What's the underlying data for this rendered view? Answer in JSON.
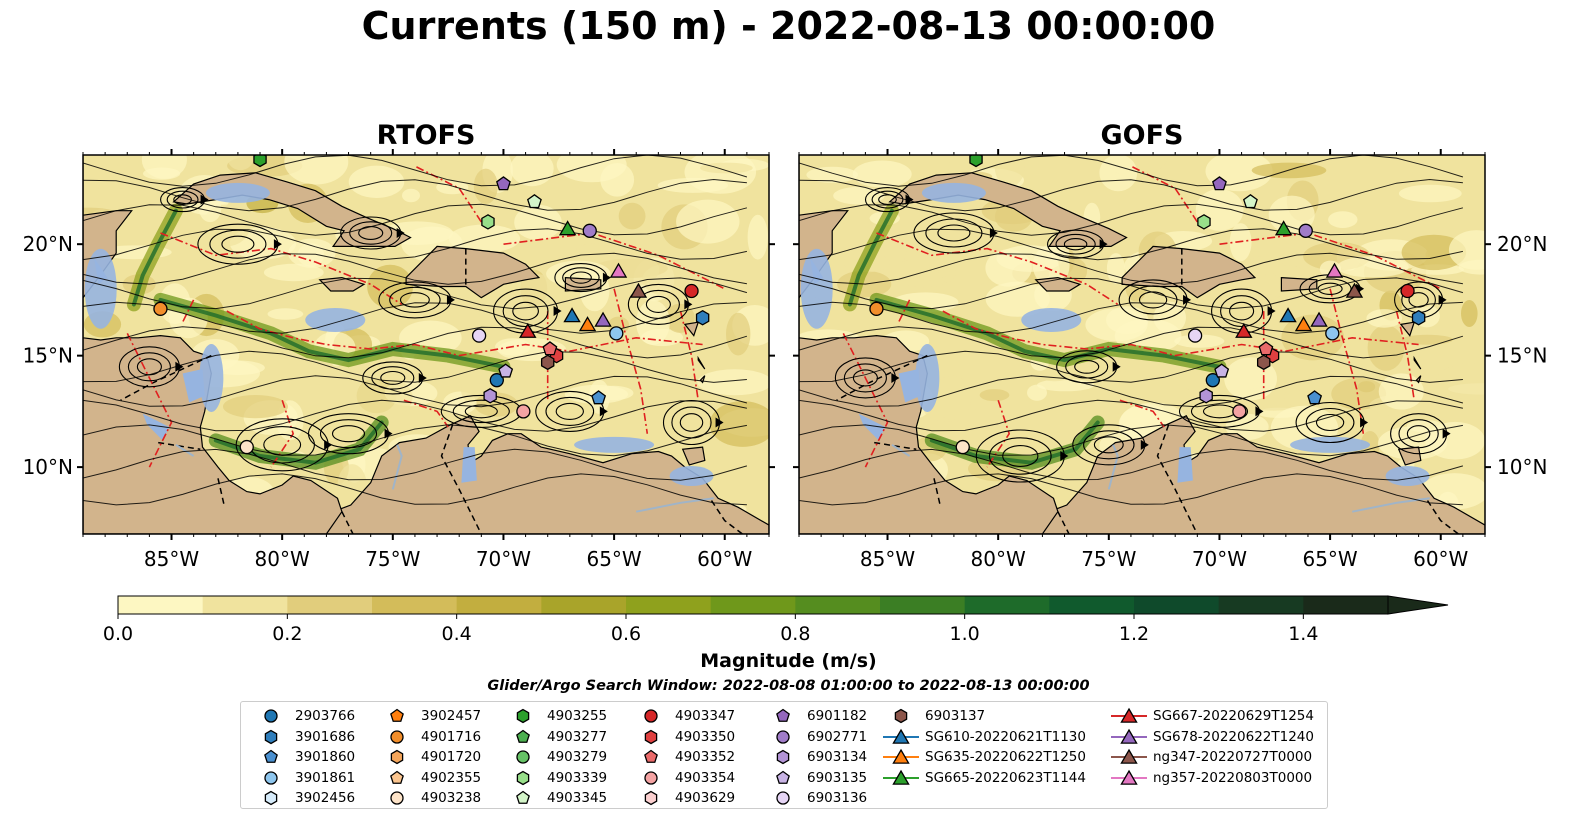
{
  "title": "Currents (150 m) - 2022-08-13 00:00:00",
  "panels": [
    {
      "title": "RTOFS"
    },
    {
      "title": "GOFS"
    }
  ],
  "axes": {
    "lon_ticks": [
      "85°W",
      "80°W",
      "75°W",
      "70°W",
      "65°W",
      "60°W"
    ],
    "lat_ticks": [
      "20°N",
      "15°N",
      "10°N"
    ]
  },
  "colorbar": {
    "label": "Magnitude (m/s)",
    "ticks": [
      "0.0",
      "0.2",
      "0.4",
      "0.6",
      "0.8",
      "1.0",
      "1.2",
      "1.4"
    ],
    "colors": [
      "#fdf7c2",
      "#f0e39e",
      "#e1cd7c",
      "#d3bc5a",
      "#c2ae3f",
      "#a9a42a",
      "#8fa11d",
      "#6f981b",
      "#558d1f",
      "#3b7e24",
      "#1e6b2a",
      "#105a2d",
      "#0f4a2b",
      "#173a22",
      "#1a2a1a"
    ]
  },
  "search_window": "Glider/Argo Search Window: 2022-08-08 01:00:00 to 2022-08-13 00:00:00",
  "legend": [
    {
      "label": "2903766",
      "marker": "circle",
      "color": "#1f77b4"
    },
    {
      "label": "3901686",
      "marker": "hexagon",
      "color": "#2f7ebc"
    },
    {
      "label": "3901860",
      "marker": "pentagon",
      "color": "#4a90d0"
    },
    {
      "label": "3901861",
      "marker": "circle",
      "color": "#8ec6ee"
    },
    {
      "label": "3902456",
      "marker": "hexagon",
      "color": "#d6ebfa"
    },
    {
      "label": "3902457",
      "marker": "pentagon",
      "color": "#ff7f0e"
    },
    {
      "label": "4901716",
      "marker": "circle",
      "color": "#f28e2b"
    },
    {
      "label": "4901720",
      "marker": "hexagon",
      "color": "#f5a65b"
    },
    {
      "label": "4902355",
      "marker": "pentagon",
      "color": "#fbc58f"
    },
    {
      "label": "4903238",
      "marker": "circle",
      "color": "#fde3c8"
    },
    {
      "label": "4903255",
      "marker": "hexagon",
      "color": "#2ca02c"
    },
    {
      "label": "4903277",
      "marker": "pentagon",
      "color": "#4caf50"
    },
    {
      "label": "4903279",
      "marker": "circle",
      "color": "#66c266"
    },
    {
      "label": "4903339",
      "marker": "hexagon",
      "color": "#98df8a"
    },
    {
      "label": "4903345",
      "marker": "pentagon",
      "color": "#d4f5c9"
    },
    {
      "label": "4903347",
      "marker": "circle",
      "color": "#d62728"
    },
    {
      "label": "4903350",
      "marker": "hexagon",
      "color": "#e04040"
    },
    {
      "label": "4903352",
      "marker": "pentagon",
      "color": "#ea6a6a"
    },
    {
      "label": "4903354",
      "marker": "circle",
      "color": "#f4a3a3"
    },
    {
      "label": "4903629",
      "marker": "hexagon",
      "color": "#fbd0d0"
    },
    {
      "label": "6901182",
      "marker": "pentagon",
      "color": "#9467bd"
    },
    {
      "label": "6902771",
      "marker": "circle",
      "color": "#a07cc8"
    },
    {
      "label": "6903134",
      "marker": "hexagon",
      "color": "#b394d6"
    },
    {
      "label": "6903135",
      "marker": "pentagon",
      "color": "#c8b3e4"
    },
    {
      "label": "6903136",
      "marker": "circle",
      "color": "#e6d5f5"
    },
    {
      "label": "6903137",
      "marker": "hexagon",
      "color": "#8c564b"
    },
    {
      "label": "SG610-20220621T1130",
      "marker": "triangle-line",
      "color": "#1f77b4"
    },
    {
      "label": "SG635-20220622T1250",
      "marker": "triangle-line",
      "color": "#ff7f0e"
    },
    {
      "label": "SG665-20220623T1144",
      "marker": "triangle-line",
      "color": "#2ca02c"
    },
    {
      "label": "SG667-20220629T1254",
      "marker": "triangle-line",
      "color": "#d62728"
    },
    {
      "label": "SG678-20220622T1240",
      "marker": "triangle-line",
      "color": "#9467bd"
    },
    {
      "label": "ng347-20220727T0000",
      "marker": "triangle-line",
      "color": "#8c564b"
    },
    {
      "label": "ng357-20220803T0000",
      "marker": "triangle-line",
      "color": "#e377c2"
    }
  ],
  "map_colors": {
    "land": "#d2b48c",
    "lake": "#96b4e0",
    "river": "#a0b4c8",
    "border": "#000000",
    "eez": "#e02020",
    "stream": "#000000"
  },
  "map_points_lonlat": [
    {
      "id": "3901686",
      "lon": -61.0,
      "lat": 16.7,
      "marker": "hexagon",
      "color": "#2f7ebc"
    },
    {
      "id": "3901861",
      "lon": -64.9,
      "lat": 16.0,
      "marker": "circle",
      "color": "#8ec6ee"
    },
    {
      "id": "2903766",
      "lon": -70.3,
      "lat": 13.9,
      "marker": "circle",
      "color": "#1f77b4"
    },
    {
      "id": "3901860",
      "lon": -65.7,
      "lat": 13.1,
      "marker": "pentagon",
      "color": "#4a90d0"
    },
    {
      "id": "4901716",
      "lon": -85.5,
      "lat": 17.1,
      "marker": "circle",
      "color": "#f28e2b"
    },
    {
      "id": "4903238",
      "lon": -81.6,
      "lat": 10.9,
      "marker": "circle",
      "color": "#fde3c8"
    },
    {
      "id": "4903255",
      "lon": -81.0,
      "lat": 23.8,
      "marker": "hexagon",
      "color": "#2ca02c"
    },
    {
      "id": "4903345",
      "lon": -68.6,
      "lat": 21.9,
      "marker": "pentagon",
      "color": "#d4f5c9"
    },
    {
      "id": "4903339",
      "lon": -70.7,
      "lat": 21.0,
      "marker": "hexagon",
      "color": "#98df8a"
    },
    {
      "id": "4903347",
      "lon": -61.5,
      "lat": 17.9,
      "marker": "circle",
      "color": "#d62728"
    },
    {
      "id": "4903350",
      "lon": -67.6,
      "lat": 15.0,
      "marker": "hexagon",
      "color": "#e04040"
    },
    {
      "id": "4903352",
      "lon": -67.9,
      "lat": 15.3,
      "marker": "pentagon",
      "color": "#ea6a6a"
    },
    {
      "id": "4903354",
      "lon": -69.1,
      "lat": 12.5,
      "marker": "circle",
      "color": "#f4a3a3"
    },
    {
      "id": "6901182",
      "lon": -70.0,
      "lat": 22.7,
      "marker": "pentagon",
      "color": "#9467bd"
    },
    {
      "id": "6902771",
      "lon": -66.1,
      "lat": 20.6,
      "marker": "circle",
      "color": "#a07cc8"
    },
    {
      "id": "6903134",
      "lon": -70.6,
      "lat": 13.2,
      "marker": "hexagon",
      "color": "#b394d6"
    },
    {
      "id": "6903135",
      "lon": -69.9,
      "lat": 14.3,
      "marker": "pentagon",
      "color": "#c8b3e4"
    },
    {
      "id": "6903136",
      "lon": -71.1,
      "lat": 15.9,
      "marker": "circle",
      "color": "#e6d5f5"
    },
    {
      "id": "6903137",
      "lon": -68.0,
      "lat": 14.7,
      "marker": "hexagon",
      "color": "#8c564b"
    },
    {
      "id": "SG610",
      "lon": -66.9,
      "lat": 16.8,
      "marker": "triangle",
      "color": "#1f77b4"
    },
    {
      "id": "SG635",
      "lon": -66.2,
      "lat": 16.4,
      "marker": "triangle",
      "color": "#ff7f0e"
    },
    {
      "id": "SG665",
      "lon": -67.1,
      "lat": 20.7,
      "marker": "triangle",
      "color": "#2ca02c"
    },
    {
      "id": "SG667",
      "lon": -68.9,
      "lat": 16.1,
      "marker": "triangle",
      "color": "#d62728"
    },
    {
      "id": "SG678",
      "lon": -65.5,
      "lat": 16.6,
      "marker": "triangle",
      "color": "#9467bd"
    },
    {
      "id": "ng347",
      "lon": -63.9,
      "lat": 17.9,
      "marker": "triangle",
      "color": "#8c564b"
    },
    {
      "id": "ng357",
      "lon": -64.8,
      "lat": 18.8,
      "marker": "triangle",
      "color": "#e377c2"
    }
  ]
}
